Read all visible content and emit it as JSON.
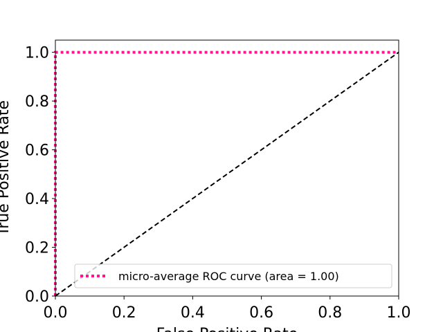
{
  "chart_data": {
    "type": "line",
    "xlabel": "False Positive Rate",
    "ylabel": "True Positive Rate",
    "xlim": [
      0.0,
      1.0
    ],
    "ylim": [
      0.0,
      1.05
    ],
    "xticks": [
      "0.0",
      "0.2",
      "0.4",
      "0.6",
      "0.8",
      "1.0"
    ],
    "yticks": [
      "0.0",
      "0.2",
      "0.4",
      "0.6",
      "0.8",
      "1.0"
    ],
    "grid": false,
    "legend_position": "lower right",
    "series": [
      {
        "name": "micro-average ROC curve (area = 1.00)",
        "x": [
          0.0,
          0.0,
          1.0
        ],
        "y": [
          0.0,
          1.0,
          1.0
        ],
        "color": "#ff1493",
        "style": "dotted"
      },
      {
        "x": [
          0.0,
          1.0
        ],
        "y": [
          0.0,
          1.0
        ],
        "color": "#000000",
        "style": "dashed"
      }
    ]
  }
}
